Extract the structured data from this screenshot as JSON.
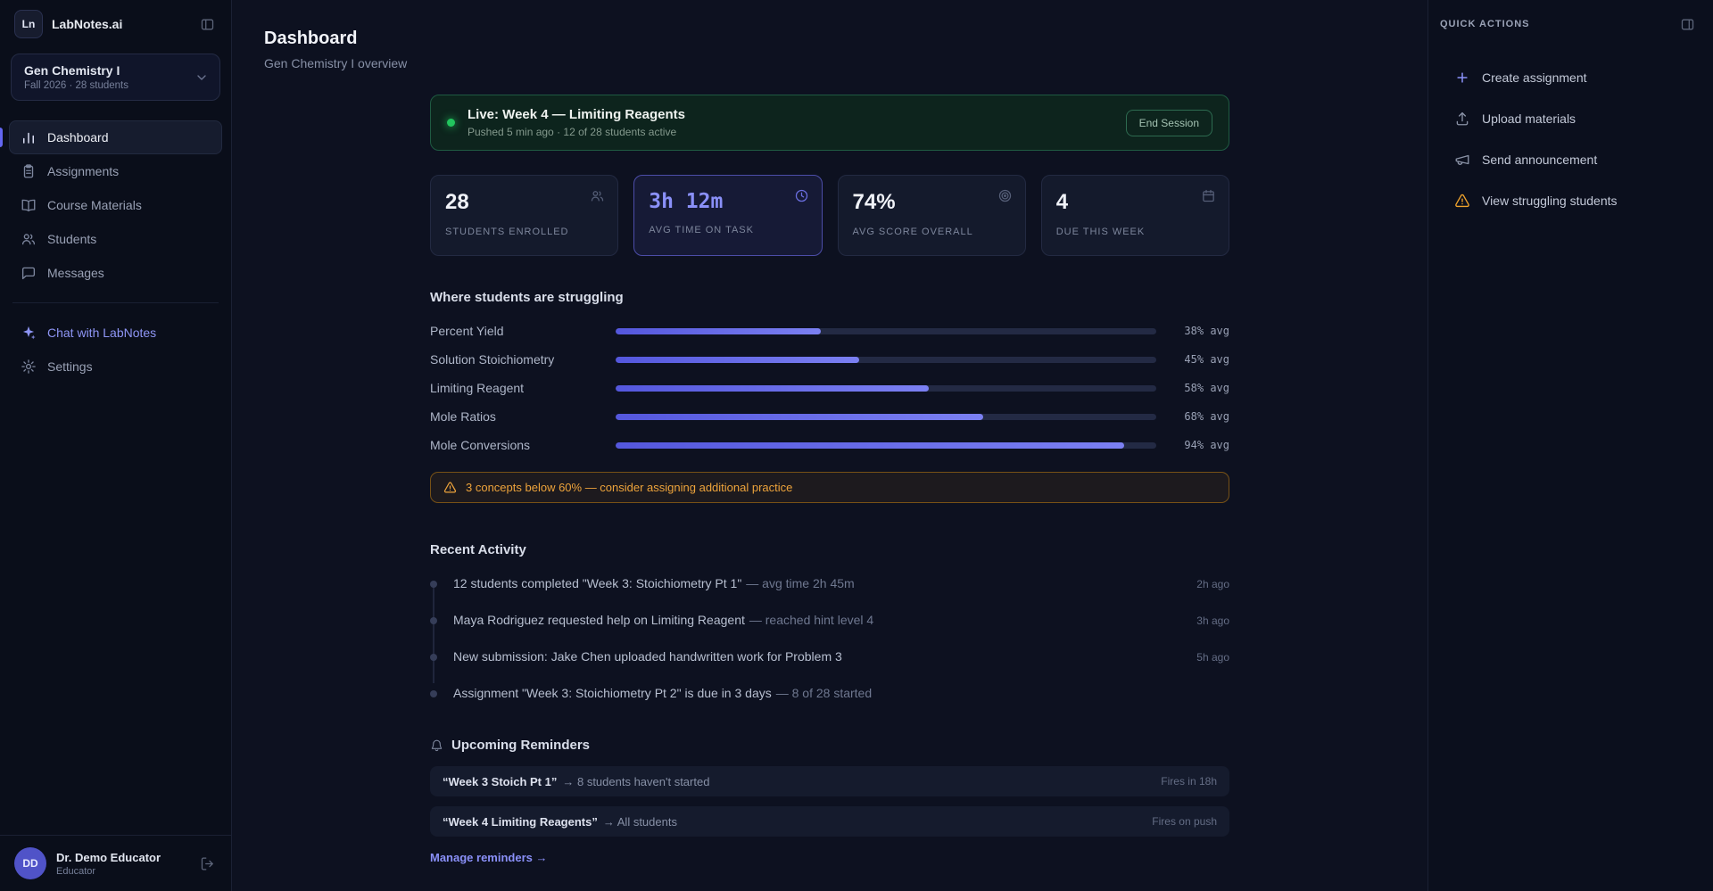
{
  "colors": {
    "accent": "#6366f1",
    "live_green": "#22c55e",
    "warning_amber": "#f59e0b"
  },
  "sidebar": {
    "logo_monogram": "Ln",
    "app_name": "LabNotes.ai",
    "course": {
      "name": "Gen Chemistry I",
      "meta": "Fall 2026 · 28 students"
    },
    "nav": [
      {
        "label": "Dashboard",
        "icon": "bar-chart-icon",
        "active": true
      },
      {
        "label": "Assignments",
        "icon": "clipboard-icon",
        "active": false
      },
      {
        "label": "Course Materials",
        "icon": "book-icon",
        "active": false
      },
      {
        "label": "Students",
        "icon": "users-icon",
        "active": false
      },
      {
        "label": "Messages",
        "icon": "chat-icon",
        "active": false
      }
    ],
    "secondary": [
      {
        "label": "Chat with LabNotes",
        "icon": "sparkle-icon"
      },
      {
        "label": "Settings",
        "icon": "gear-icon"
      }
    ],
    "user": {
      "initials": "DD",
      "name": "Dr. Demo Educator",
      "role": "Educator"
    }
  },
  "header": {
    "title": "Dashboard",
    "subtitle": "Gen Chemistry I overview"
  },
  "live_session": {
    "title": "Live: Week 4 — Limiting Reagents",
    "subtitle": "Pushed 5 min ago · 12 of 28 students active",
    "end_button": "End Session"
  },
  "stats": [
    {
      "value": "28",
      "label": "STUDENTS ENROLLED",
      "icon": "users-icon"
    },
    {
      "value": "3h 12m",
      "label": "AVG TIME ON TASK",
      "icon": "clock-icon",
      "highlight": true
    },
    {
      "value": "74%",
      "label": "AVG SCORE OVERALL",
      "icon": "target-icon"
    },
    {
      "value": "4",
      "label": "DUE THIS WEEK",
      "icon": "calendar-icon"
    }
  ],
  "struggling": {
    "title": "Where students are struggling",
    "chart_data": {
      "type": "bar",
      "orientation": "horizontal",
      "categories": [
        "Percent Yield",
        "Solution Stoichiometry",
        "Limiting Reagent",
        "Mole Ratios",
        "Mole Conversions"
      ],
      "values": [
        38,
        45,
        58,
        68,
        94
      ],
      "value_suffix": "% avg",
      "title": "Where students are struggling",
      "xlim": [
        0,
        100
      ]
    },
    "rows": [
      {
        "label": "Percent Yield",
        "pct": 38,
        "value": "38% avg"
      },
      {
        "label": "Solution Stoichiometry",
        "pct": 45,
        "value": "45% avg"
      },
      {
        "label": "Limiting Reagent",
        "pct": 58,
        "value": "58% avg"
      },
      {
        "label": "Mole Ratios",
        "pct": 68,
        "value": "68% avg"
      },
      {
        "label": "Mole Conversions",
        "pct": 94,
        "value": "94% avg"
      }
    ],
    "warning": "3 concepts below 60% — consider assigning additional practice"
  },
  "recent_activity": {
    "title": "Recent Activity",
    "items": [
      {
        "text": "12 students completed \"Week 3: Stoichiometry Pt 1\"",
        "suffix": "— avg time 2h 45m",
        "time": "2h ago"
      },
      {
        "text": "Maya Rodriguez requested help on Limiting Reagent",
        "suffix": "— reached hint level 4",
        "time": "3h ago"
      },
      {
        "text": "New submission: Jake Chen uploaded handwritten work for Problem 3",
        "suffix": "",
        "time": "5h ago"
      },
      {
        "text": "Assignment \"Week 3: Stoichiometry Pt 2\" is due in 3 days",
        "suffix": "— 8 of 28 started",
        "time": ""
      }
    ]
  },
  "reminders": {
    "title": "Upcoming Reminders",
    "items": [
      {
        "name": "“Week 3 Stoich Pt 1”",
        "detail": "→ 8 students haven't started",
        "fires": "Fires in 18h"
      },
      {
        "name": "“Week 4 Limiting Reagents”",
        "detail": "→ All students",
        "fires": "Fires on push"
      }
    ],
    "manage_link": "Manage reminders →"
  },
  "quick_actions": {
    "title": "QUICK ACTIONS",
    "items": [
      {
        "label": "Create assignment",
        "icon": "plus-icon"
      },
      {
        "label": "Upload materials",
        "icon": "upload-icon"
      },
      {
        "label": "Send announcement",
        "icon": "megaphone-icon"
      },
      {
        "label": "View struggling students",
        "icon": "warning-icon"
      }
    ]
  }
}
